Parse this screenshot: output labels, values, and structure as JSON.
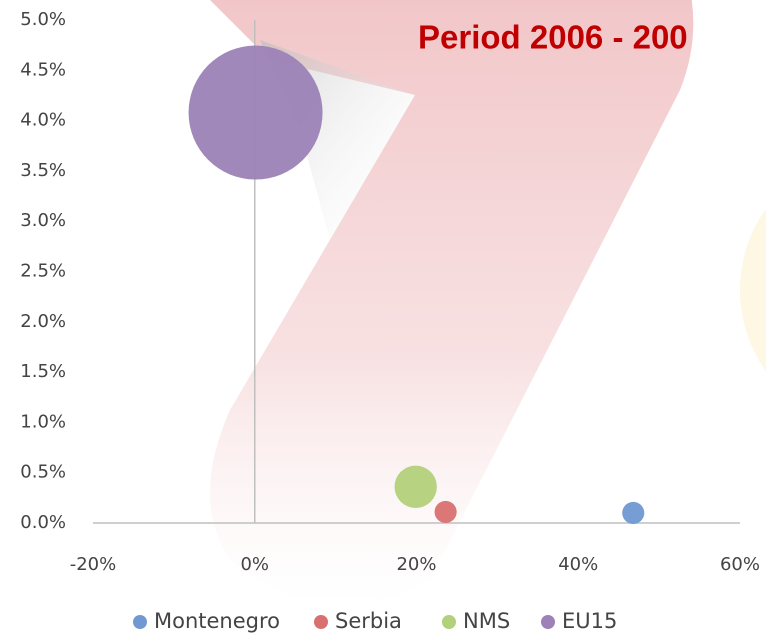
{
  "chart_data": {
    "type": "scatter",
    "title": "Period 2006 - 200",
    "series": [
      {
        "name": "Montenegro",
        "color": "#7099d2",
        "x": [
          46.8
        ],
        "values": [
          0.1
        ],
        "sizes": [
          3
        ]
      },
      {
        "name": "Serbia",
        "color": "#d9706f",
        "x": [
          23.6
        ],
        "values": [
          0.11
        ],
        "sizes": [
          3
        ]
      },
      {
        "name": "NMS",
        "color": "#b3d07a",
        "x": [
          19.9
        ],
        "values": [
          0.36
        ],
        "sizes": [
          11
        ]
      },
      {
        "name": "EU15",
        "color": "#9c82b7",
        "x": [
          0.1
        ],
        "values": [
          4.08
        ],
        "sizes": [
          110
        ]
      }
    ],
    "xlim": [
      -20,
      60
    ],
    "xticks": [
      {
        "value": -20,
        "label": "-20%"
      },
      {
        "value": 0,
        "label": "0%"
      },
      {
        "value": 20,
        "label": "20%"
      },
      {
        "value": 40,
        "label": "40%"
      },
      {
        "value": 60,
        "label": "60%"
      }
    ],
    "ylim": [
      0,
      5
    ],
    "yticks": [
      {
        "value": 0,
        "label": "0.0%"
      },
      {
        "value": 0.5,
        "label": "0.5%"
      },
      {
        "value": 1,
        "label": "1.0%"
      },
      {
        "value": 1.5,
        "label": "1.5%"
      },
      {
        "value": 2,
        "label": "2.0%"
      },
      {
        "value": 2.5,
        "label": "2.5%"
      },
      {
        "value": 3,
        "label": "3.0%"
      },
      {
        "value": 3.5,
        "label": "3.5%"
      },
      {
        "value": 4,
        "label": "4.0%"
      },
      {
        "value": 4.5,
        "label": "4.5%"
      },
      {
        "value": 5,
        "label": "5.0%"
      }
    ],
    "legend": "bottom"
  }
}
